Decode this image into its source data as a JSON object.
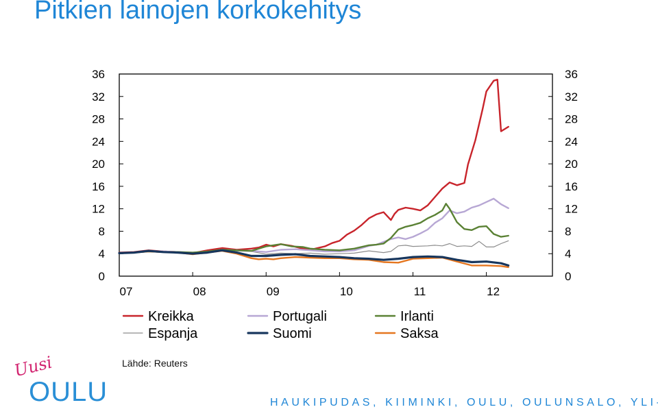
{
  "slide": {
    "title": "Pitkien lainojen korkokehitys",
    "source": "Lähde: Reuters",
    "footer": "HAUKIPUDAS, KIIMINKI, OULU, OULUNSALO, YLI-II",
    "logo": {
      "script": "Uusi",
      "main": "OULU",
      "script_color": "#d2236f",
      "main_color": "#2a8fd6"
    },
    "title_color": "#1f86d6"
  },
  "chart_data": {
    "type": "line",
    "title": "",
    "xlabel": "",
    "ylabel": "",
    "ylim": [
      0,
      36
    ],
    "xlim": [
      2007.0,
      2012.9
    ],
    "yticks": [
      0,
      4,
      8,
      12,
      16,
      20,
      24,
      28,
      32,
      36
    ],
    "y_tick_labels": [
      "0",
      "4",
      "8",
      "12",
      "16",
      "20",
      "24",
      "28",
      "32",
      "36"
    ],
    "x_ticks": [
      2007.0,
      2008.0,
      2009.0,
      2010.0,
      2011.0,
      2012.0
    ],
    "x_tick_labels": [
      "07",
      "08",
      "09",
      "10",
      "11",
      "12"
    ],
    "y_axis_both_sides": true,
    "grid": false,
    "legend_position": "bottom",
    "series": [
      {
        "name": "Kreikka",
        "color": "#c8242b",
        "width": 2.4,
        "x": [
          2007.0,
          2007.2,
          2007.4,
          2007.6,
          2007.8,
          2008.0,
          2008.2,
          2008.4,
          2008.6,
          2008.8,
          2008.9,
          2009.0,
          2009.1,
          2009.2,
          2009.35,
          2009.5,
          2009.6,
          2009.7,
          2009.8,
          2009.9,
          2010.0,
          2010.1,
          2010.2,
          2010.3,
          2010.4,
          2010.5,
          2010.6,
          2010.7,
          2010.75,
          2010.8,
          2010.9,
          2011.0,
          2011.1,
          2011.2,
          2011.3,
          2011.4,
          2011.5,
          2011.6,
          2011.7,
          2011.75,
          2011.85,
          2011.95,
          2012.0,
          2012.1,
          2012.15,
          2012.2,
          2012.3
        ],
        "y": [
          4.2,
          4.3,
          4.6,
          4.4,
          4.3,
          4.1,
          4.6,
          5.0,
          4.7,
          4.9,
          5.1,
          5.6,
          5.3,
          5.7,
          5.4,
          4.9,
          4.7,
          5.0,
          5.3,
          5.9,
          6.3,
          7.4,
          8.1,
          9.1,
          10.3,
          11.0,
          11.4,
          10.0,
          11.1,
          11.8,
          12.2,
          12.0,
          11.7,
          12.6,
          14.1,
          15.6,
          16.7,
          16.2,
          16.6,
          19.9,
          24.2,
          29.8,
          32.9,
          34.8,
          35.0,
          25.8,
          26.6
        ]
      },
      {
        "name": "Portugali",
        "color": "#b7a7d4",
        "width": 2.4,
        "x": [
          2007.0,
          2007.2,
          2007.4,
          2007.6,
          2007.8,
          2008.0,
          2008.2,
          2008.4,
          2008.6,
          2008.8,
          2009.0,
          2009.2,
          2009.4,
          2009.6,
          2009.8,
          2010.0,
          2010.2,
          2010.4,
          2010.5,
          2010.6,
          2010.7,
          2010.8,
          2010.9,
          2011.0,
          2011.1,
          2011.2,
          2011.3,
          2011.4,
          2011.5,
          2011.6,
          2011.7,
          2011.8,
          2011.9,
          2012.0,
          2012.1,
          2012.2,
          2012.3
        ],
        "y": [
          4.1,
          4.2,
          4.5,
          4.4,
          4.3,
          4.2,
          4.3,
          4.7,
          4.6,
          4.5,
          4.3,
          4.7,
          4.8,
          4.6,
          4.4,
          4.4,
          4.6,
          5.4,
          5.6,
          6.1,
          6.6,
          6.9,
          6.6,
          7.0,
          7.6,
          8.3,
          9.5,
          10.3,
          11.7,
          11.2,
          11.5,
          12.2,
          12.6,
          13.2,
          13.8,
          12.8,
          12.1
        ]
      },
      {
        "name": "Irlanti",
        "color": "#5a8134",
        "width": 2.4,
        "x": [
          2007.0,
          2007.2,
          2007.4,
          2007.6,
          2007.8,
          2008.0,
          2008.2,
          2008.4,
          2008.6,
          2008.8,
          2009.0,
          2009.2,
          2009.35,
          2009.5,
          2009.6,
          2009.8,
          2010.0,
          2010.2,
          2010.4,
          2010.5,
          2010.6,
          2010.7,
          2010.8,
          2010.9,
          2011.0,
          2011.1,
          2011.2,
          2011.3,
          2011.4,
          2011.45,
          2011.5,
          2011.6,
          2011.7,
          2011.8,
          2011.9,
          2012.0,
          2012.1,
          2012.2,
          2012.3
        ],
        "y": [
          4.1,
          4.2,
          4.4,
          4.3,
          4.3,
          4.2,
          4.4,
          4.7,
          4.6,
          4.5,
          5.3,
          5.7,
          5.3,
          5.2,
          4.9,
          4.7,
          4.6,
          4.9,
          5.5,
          5.6,
          5.8,
          6.8,
          8.3,
          8.8,
          9.1,
          9.5,
          10.3,
          10.9,
          11.7,
          12.9,
          12.0,
          9.6,
          8.4,
          8.2,
          8.8,
          8.9,
          7.5,
          7.0,
          7.2
        ]
      },
      {
        "name": "Espanja",
        "color": "#8c8c8c",
        "width": 1.2,
        "x": [
          2007.0,
          2007.2,
          2007.4,
          2007.6,
          2007.8,
          2008.0,
          2008.2,
          2008.4,
          2008.6,
          2008.8,
          2009.0,
          2009.2,
          2009.4,
          2009.6,
          2009.8,
          2010.0,
          2010.2,
          2010.4,
          2010.6,
          2010.7,
          2010.8,
          2010.9,
          2011.0,
          2011.2,
          2011.3,
          2011.4,
          2011.5,
          2011.6,
          2011.7,
          2011.8,
          2011.9,
          2012.0,
          2012.1,
          2012.2,
          2012.3
        ],
        "y": [
          4.1,
          4.2,
          4.4,
          4.3,
          4.3,
          4.2,
          4.3,
          4.6,
          4.5,
          4.4,
          3.9,
          4.1,
          4.0,
          4.1,
          3.9,
          4.0,
          4.1,
          4.5,
          4.2,
          4.4,
          5.4,
          5.5,
          5.3,
          5.4,
          5.5,
          5.4,
          5.8,
          5.3,
          5.4,
          5.3,
          6.2,
          5.2,
          5.2,
          5.8,
          6.3
        ]
      },
      {
        "name": "Suomi",
        "color": "#17365d",
        "width": 3.2,
        "x": [
          2007.0,
          2007.2,
          2007.4,
          2007.6,
          2007.8,
          2008.0,
          2008.2,
          2008.4,
          2008.6,
          2008.8,
          2009.0,
          2009.2,
          2009.4,
          2009.6,
          2009.8,
          2010.0,
          2010.2,
          2010.4,
          2010.6,
          2010.8,
          2011.0,
          2011.2,
          2011.4,
          2011.6,
          2011.8,
          2012.0,
          2012.2,
          2012.3
        ],
        "y": [
          4.1,
          4.2,
          4.5,
          4.3,
          4.2,
          4.0,
          4.2,
          4.6,
          4.2,
          3.6,
          3.6,
          3.8,
          3.9,
          3.6,
          3.5,
          3.4,
          3.2,
          3.1,
          2.9,
          3.1,
          3.4,
          3.5,
          3.4,
          2.9,
          2.5,
          2.6,
          2.3,
          1.9
        ]
      },
      {
        "name": "Saksa",
        "color": "#e5761f",
        "width": 2.4,
        "x": [
          2007.0,
          2007.2,
          2007.4,
          2007.6,
          2007.8,
          2008.0,
          2008.2,
          2008.4,
          2008.6,
          2008.8,
          2008.9,
          2009.0,
          2009.1,
          2009.2,
          2009.4,
          2009.6,
          2009.8,
          2010.0,
          2010.2,
          2010.4,
          2010.6,
          2010.8,
          2011.0,
          2011.2,
          2011.4,
          2011.6,
          2011.8,
          2012.0,
          2012.2,
          2012.3
        ],
        "y": [
          4.1,
          4.2,
          4.4,
          4.3,
          4.2,
          3.9,
          4.2,
          4.5,
          4.0,
          3.2,
          3.0,
          3.1,
          3.0,
          3.2,
          3.4,
          3.3,
          3.2,
          3.2,
          3.0,
          2.9,
          2.5,
          2.4,
          3.1,
          3.2,
          3.3,
          2.6,
          1.9,
          1.9,
          1.8,
          1.6
        ]
      }
    ]
  }
}
